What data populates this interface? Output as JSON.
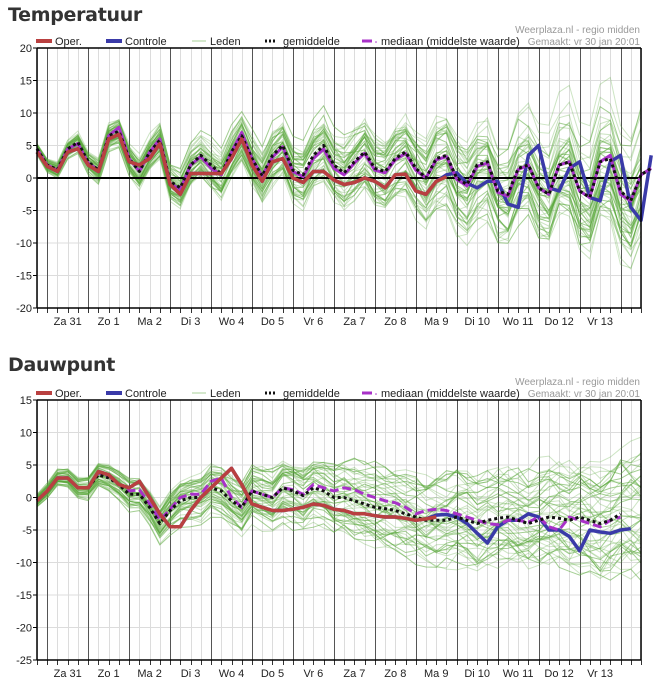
{
  "source": {
    "line1": "Weerplaza.nl - regio midden",
    "line2": "Gemaakt: vr 30 jan 20:01"
  },
  "legend": {
    "oper": "Oper.",
    "controle": "Controle",
    "leden": "Leden",
    "gemiddelde": "gemiddelde",
    "mediaan": "mediaan (middelste waarde)"
  },
  "colors": {
    "oper": "#b94040",
    "controle": "#3a3aa8",
    "leden": "#5aa83a",
    "gemiddelde": "#111111",
    "mediaan": "#a832c8"
  },
  "chart_data": [
    {
      "type": "line",
      "title": "Temperatuur",
      "ylim": [
        -20,
        20
      ],
      "yticks": [
        20,
        15,
        10,
        5,
        0,
        -5,
        -10,
        -15,
        -20
      ],
      "x_step_hours": 6,
      "day_labels": [
        "Za 31",
        "Zo 1",
        "Ma 2",
        "Di 3",
        "Wo 4",
        "Do 5",
        "Vr 6",
        "Za 7",
        "Zo 8",
        "Ma 9",
        "Di 10",
        "Wo 11",
        "Do 12",
        "Vr 13"
      ],
      "grid": true,
      "series": [
        {
          "name": "Oper.",
          "values": [
            4,
            1.8,
            1,
            4,
            4.5,
            2,
            1,
            6,
            6.7,
            2.5,
            2,
            3,
            5.3,
            -1,
            -2.5,
            0.7,
            0.7,
            0.7,
            0.7,
            3,
            6,
            2,
            -0.5,
            2.5,
            3,
            0,
            -0.7,
            1,
            1,
            -0.3,
            -1,
            -0.7,
            0,
            -0.5,
            -1.5,
            0.5,
            0.6,
            -2,
            -2.5,
            -0.5,
            0.2
          ]
        },
        {
          "name": "Controle",
          "values": [
            4,
            1.8,
            1,
            4,
            4.5,
            2,
            1,
            6,
            6.7,
            2.5,
            2,
            3,
            5.3,
            -1,
            -2.5,
            0.7,
            0.7,
            0.7,
            0.7,
            3,
            6,
            2,
            -0.5,
            2.5,
            3,
            0,
            -0.7,
            1,
            1,
            -0.3,
            -1,
            -0.7,
            0,
            -0.5,
            -1.5,
            0.5,
            0.6,
            -2,
            -2.5,
            -0.5,
            0.5,
            0.8,
            -0.8,
            -1.5,
            -0.5,
            -0.5,
            -4,
            -4.5,
            3.5,
            5,
            -1.5,
            -2,
            1.5,
            2.5,
            -3,
            -3.5,
            2.5,
            3.5,
            -4.5,
            -6.5,
            3.5
          ]
        },
        {
          "name": "gemiddelde",
          "values": [
            4.5,
            2,
            1.3,
            4.5,
            5.5,
            2.5,
            1.2,
            6.5,
            7.2,
            3,
            1,
            4,
            5.8,
            -0.5,
            -1.5,
            2,
            3.5,
            2,
            0.6,
            4,
            6.5,
            3,
            0.3,
            3.5,
            5,
            1.2,
            0.5,
            3.5,
            5,
            2,
            0.8,
            2.5,
            4,
            1.5,
            1,
            3,
            4,
            1.5,
            0,
            3,
            3.5,
            0,
            -1,
            2,
            2.5,
            -2,
            -2.5,
            1.5,
            2,
            -1.5,
            -2.5,
            2,
            2.5,
            -2,
            -3,
            2.5,
            3,
            -2,
            -3.5,
            0.5,
            1.5
          ]
        },
        {
          "name": "mediaan (middelste waarde)",
          "values": [
            4.5,
            2,
            1.2,
            4.5,
            5.3,
            2.3,
            1.2,
            6.5,
            7.8,
            3,
            1,
            4,
            6,
            -0.8,
            -1.8,
            2,
            3.3,
            1.5,
            0.5,
            4,
            7,
            3,
            0.3,
            3.2,
            4.8,
            1,
            0.2,
            3,
            4.5,
            1.5,
            0.5,
            2.3,
            3.8,
            1.2,
            0.8,
            2.8,
            3.8,
            1.2,
            0,
            2.8,
            3.3,
            -0.2,
            -1.2,
            1.8,
            2.3,
            -2.2,
            -2.8,
            1.3,
            2,
            -1.5,
            -2.5,
            2,
            2.5,
            -2,
            -3,
            2.5,
            3.5,
            -2.5,
            -3.5,
            0.5,
            1.5
          ]
        }
      ]
    },
    {
      "type": "line",
      "title": "Dauwpunt",
      "ylim": [
        -25,
        15
      ],
      "yticks": [
        15,
        10,
        5,
        0,
        -5,
        -10,
        -15,
        -20,
        -25
      ],
      "x_step_hours": 6,
      "day_labels": [
        "Za 31",
        "Zo 1",
        "Ma 2",
        "Di 3",
        "Wo 4",
        "Do 5",
        "Vr 6",
        "Za 7",
        "Zo 8",
        "Ma 9",
        "Di 10",
        "Wo 11",
        "Do 12",
        "Vr 13"
      ],
      "grid": true,
      "series": [
        {
          "name": "Oper.",
          "values": [
            -0.5,
            1,
            3,
            3,
            1.5,
            1.5,
            4,
            3.5,
            2,
            1.5,
            2.5,
            0,
            -2.5,
            -4.5,
            -4.5,
            -2,
            0,
            1.5,
            3,
            4.5,
            2,
            -1,
            -1.5,
            -2,
            -2,
            -1.8,
            -1.5,
            -1,
            -1.2,
            -1.8,
            -2,
            -2.5,
            -2.5,
            -2.8,
            -3,
            -3,
            -3.2,
            -3.5,
            -3.3,
            -3
          ]
        },
        {
          "name": "Controle",
          "values": [
            -0.5,
            1,
            3,
            3,
            1.5,
            1.5,
            4,
            3.5,
            2,
            1.5,
            2.5,
            0,
            -2.5,
            -4.5,
            -4.5,
            -2,
            0,
            1.5,
            3,
            4.5,
            2,
            -1,
            -1.5,
            -2,
            -2,
            -1.8,
            -1.5,
            -1,
            -1.2,
            -1.8,
            -2,
            -2.5,
            -2.5,
            -2.8,
            -3,
            -3,
            -3.2,
            -3.5,
            -3.3,
            -2.7,
            -2.6,
            -3,
            -4,
            -5.5,
            -7,
            -4.5,
            -3.5,
            -3.5,
            -2.5,
            -3,
            -5,
            -5,
            -6,
            -8.2,
            -5,
            -5.3,
            -5.5,
            -5,
            -4.8
          ]
        },
        {
          "name": "gemiddelde",
          "values": [
            -0.5,
            1,
            3,
            3,
            1.5,
            1.5,
            3.5,
            3,
            2,
            0.5,
            0.5,
            -1.5,
            -4,
            -2,
            -0.5,
            0,
            0,
            1.5,
            1,
            -0.5,
            -1.5,
            1,
            0.5,
            0,
            1.5,
            1,
            0.3,
            1.5,
            1,
            0,
            0,
            -0.5,
            -1,
            -1.5,
            -1.7,
            -2,
            -2.5,
            -3,
            -3.5,
            -3.5,
            -3.5,
            -3,
            -3.5,
            -4,
            -3.5,
            -3.2,
            -3,
            -3.5,
            -4,
            -3.5,
            -3,
            -3.2,
            -3.5,
            -3,
            -3.5,
            -4,
            -3.5,
            -2.5
          ]
        },
        {
          "name": "mediaan (middelste waarde)",
          "values": [
            -0.5,
            1,
            3,
            3,
            1.5,
            1.5,
            3.8,
            3.3,
            2,
            1,
            1.2,
            -1,
            -3.5,
            -1.8,
            0,
            0.5,
            0.5,
            2.5,
            3,
            0,
            -1.5,
            1,
            0.5,
            0,
            1.5,
            1.2,
            0.5,
            2,
            1.5,
            1,
            1.5,
            1.2,
            0.5,
            0,
            -0.5,
            -0.8,
            -1.5,
            -2.5,
            -2,
            -1.8,
            -2,
            -2.5,
            -3,
            -3.5,
            -4,
            -4.2,
            -3.5,
            -3.5,
            -3.8,
            -3,
            -4.5,
            -5,
            -3,
            -3.5,
            -4,
            -4.5,
            -3.5,
            -3
          ]
        }
      ]
    }
  ]
}
